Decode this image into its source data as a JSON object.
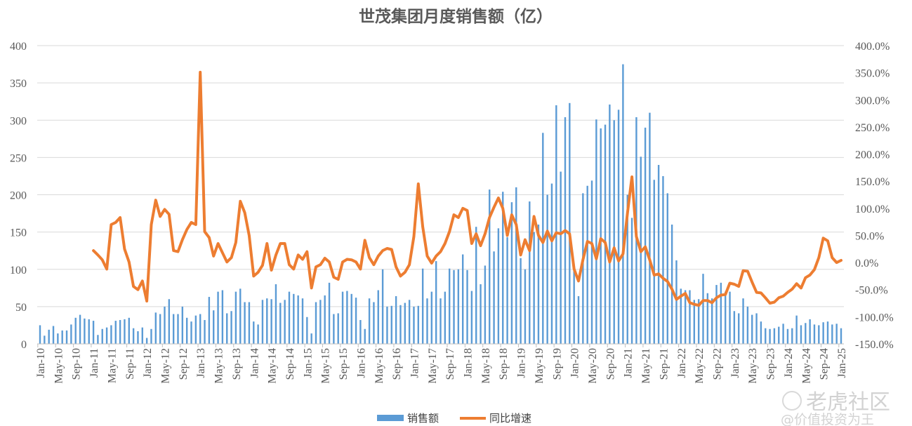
{
  "chart_data": {
    "type": "bar+line",
    "title": "世茂集团月度销售额（亿）",
    "categories": [
      "Jan-10",
      "Feb-10",
      "Mar-10",
      "Apr-10",
      "May-10",
      "Jun-10",
      "Jul-10",
      "Aug-10",
      "Sep-10",
      "Oct-10",
      "Nov-10",
      "Dec-10",
      "Jan-11",
      "Feb-11",
      "Mar-11",
      "Apr-11",
      "May-11",
      "Jun-11",
      "Jul-11",
      "Aug-11",
      "Sep-11",
      "Oct-11",
      "Nov-11",
      "Dec-11",
      "Jan-12",
      "Feb-12",
      "Mar-12",
      "Apr-12",
      "May-12",
      "Jun-12",
      "Jul-12",
      "Aug-12",
      "Sep-12",
      "Oct-12",
      "Nov-12",
      "Dec-12",
      "Jan-13",
      "Feb-13",
      "Mar-13",
      "Apr-13",
      "May-13",
      "Jun-13",
      "Jul-13",
      "Aug-13",
      "Sep-13",
      "Oct-13",
      "Nov-13",
      "Dec-13",
      "Jan-14",
      "Feb-14",
      "Mar-14",
      "Apr-14",
      "May-14",
      "Jun-14",
      "Jul-14",
      "Aug-14",
      "Sep-14",
      "Oct-14",
      "Nov-14",
      "Dec-14",
      "Jan-15",
      "Feb-15",
      "Mar-15",
      "Apr-15",
      "May-15",
      "Jun-15",
      "Jul-15",
      "Aug-15",
      "Sep-15",
      "Oct-15",
      "Nov-15",
      "Dec-15",
      "Jan-16",
      "Feb-16",
      "Mar-16",
      "Apr-16",
      "May-16",
      "Jun-16",
      "Jul-16",
      "Aug-16",
      "Sep-16",
      "Oct-16",
      "Nov-16",
      "Dec-16",
      "Jan-17",
      "Feb-17",
      "Mar-17",
      "Apr-17",
      "May-17",
      "Jun-17",
      "Jul-17",
      "Aug-17",
      "Sep-17",
      "Oct-17",
      "Nov-17",
      "Dec-17",
      "Jan-18",
      "Feb-18",
      "Mar-18",
      "Apr-18",
      "May-18",
      "Jun-18",
      "Jul-18",
      "Aug-18",
      "Sep-18",
      "Oct-18",
      "Nov-18",
      "Dec-18",
      "Jan-19",
      "Feb-19",
      "Mar-19",
      "Apr-19",
      "May-19",
      "Jun-19",
      "Jul-19",
      "Aug-19",
      "Sep-19",
      "Oct-19",
      "Nov-19",
      "Dec-19",
      "Jan-20",
      "Feb-20",
      "Mar-20",
      "Apr-20",
      "May-20",
      "Jun-20",
      "Jul-20",
      "Aug-20",
      "Sep-20",
      "Oct-20",
      "Nov-20",
      "Dec-20",
      "Jan-21",
      "Feb-21",
      "Mar-21",
      "Apr-21",
      "May-21",
      "Jun-21",
      "Jul-21",
      "Aug-21",
      "Sep-21",
      "Oct-21",
      "Nov-21",
      "Dec-21",
      "Jan-22",
      "Feb-22",
      "Mar-22",
      "Apr-22",
      "May-22",
      "Jun-22",
      "Jul-22",
      "Aug-22",
      "Sep-22",
      "Oct-22",
      "Nov-22",
      "Dec-22",
      "Jan-23",
      "Feb-23",
      "Mar-23",
      "Apr-23",
      "May-23",
      "Jun-23",
      "Jul-23",
      "Aug-23",
      "Sep-23",
      "Oct-23",
      "Nov-23",
      "Dec-23",
      "Jan-24",
      "Feb-24",
      "Mar-24",
      "Apr-24",
      "May-24",
      "Jun-24",
      "Jul-24",
      "Aug-24",
      "Sep-24",
      "Oct-24",
      "Nov-24",
      "Dec-24",
      "Jan-25"
    ],
    "x_tick_every": 4,
    "series": [
      {
        "name": "销售额",
        "type": "bar",
        "axis": "left",
        "color": "#5B9BD5",
        "values": [
          25,
          11,
          19,
          24,
          14,
          18,
          18,
          26,
          35,
          39,
          34,
          33,
          31,
          12,
          20,
          22,
          25,
          31,
          32,
          33,
          35,
          21,
          17,
          22,
          8,
          20,
          42,
          40,
          50,
          60,
          40,
          40,
          50,
          35,
          30,
          38,
          40,
          32,
          63,
          45,
          70,
          72,
          41,
          44,
          70,
          74,
          56,
          56,
          30,
          26,
          59,
          61,
          60,
          80,
          55,
          59,
          70,
          67,
          65,
          61,
          36,
          14,
          56,
          59,
          65,
          82,
          40,
          41,
          70,
          71,
          67,
          62,
          32,
          20,
          61,
          56,
          72,
          100,
          50,
          51,
          64,
          52,
          55,
          59,
          50,
          51,
          101,
          61,
          70,
          111,
          61,
          70,
          101,
          99,
          100,
          120,
          99,
          71,
          157,
          80,
          105,
          207,
          124,
          155,
          204,
          143,
          190,
          210,
          115,
          100,
          191,
          150,
          160,
          283,
          200,
          215,
          320,
          231,
          304,
          323,
          100,
          64,
          202,
          212,
          219,
          301,
          289,
          294,
          321,
          300,
          314,
          375,
          200,
          169,
          304,
          251,
          290,
          310,
          220,
          240,
          225,
          202,
          160,
          112,
          74,
          72,
          72,
          59,
          60,
          94,
          68,
          61,
          79,
          82,
          70,
          70,
          44,
          41,
          61,
          50,
          39,
          41,
          30,
          21,
          20,
          21,
          23,
          27,
          20,
          21,
          38,
          25,
          28,
          33,
          26,
          25,
          29,
          30,
          26,
          27,
          21
        ]
      },
      {
        "name": "同比增速",
        "type": "line",
        "axis": "right",
        "color": "#ED7D31",
        "values": [
          null,
          null,
          null,
          null,
          null,
          null,
          null,
          null,
          null,
          null,
          null,
          null,
          22,
          14,
          5,
          -12,
          70,
          74,
          83,
          25,
          1,
          -44,
          -50,
          -34,
          -71,
          70,
          115,
          85,
          98,
          89,
          22,
          20,
          42,
          61,
          74,
          70,
          351,
          57,
          46,
          12,
          35,
          18,
          1,
          9,
          37,
          113,
          92,
          50,
          -25,
          -18,
          -5,
          35,
          -14,
          14,
          35,
          35,
          -4,
          -12,
          14,
          6,
          20,
          -47,
          -8,
          -4,
          8,
          1,
          -27,
          -31,
          1,
          6,
          5,
          1,
          -12,
          41,
          9,
          -4,
          12,
          22,
          26,
          24,
          -8,
          -25,
          -18,
          -4,
          48,
          145,
          66,
          12,
          -1,
          12,
          20,
          35,
          57,
          88,
          83,
          100,
          96,
          35,
          53,
          31,
          53,
          83,
          102,
          119,
          100,
          50,
          88,
          70,
          14,
          42,
          22,
          85,
          50,
          37,
          58,
          40,
          55,
          53,
          59,
          53,
          -12,
          -34,
          5,
          39,
          35,
          7,
          44,
          37,
          1,
          27,
          3,
          16,
          91,
          158,
          48,
          20,
          29,
          5,
          -23,
          -21,
          -29,
          -35,
          -49,
          -68,
          -62,
          -57,
          -74,
          -77,
          -79,
          -70,
          -70,
          -74,
          -65,
          -60,
          -59,
          -38,
          -40,
          -44,
          -15,
          -16,
          -36,
          -55,
          -56,
          -65,
          -75,
          -73,
          -65,
          -62,
          -55,
          -49,
          -39,
          -47,
          -28,
          -23,
          -13,
          9,
          45,
          40,
          9,
          0,
          4
        ]
      }
    ],
    "y_left": {
      "lim": [
        0,
        400
      ],
      "ticks": [
        "0",
        "50",
        "100",
        "150",
        "200",
        "250",
        "300",
        "350",
        "400"
      ]
    },
    "y_right": {
      "lim": [
        -150,
        400
      ],
      "ticks": [
        "-150.0%",
        "-100.0%",
        "-50.0%",
        "0.0%",
        "50.0%",
        "100.0%",
        "150.0%",
        "200.0%",
        "250.0%",
        "300.0%",
        "350.0%",
        "400.0%"
      ]
    },
    "grid": true,
    "legend_position": "bottom"
  },
  "watermark": {
    "brand": "老虎社区",
    "author": "@价值投资为王"
  }
}
